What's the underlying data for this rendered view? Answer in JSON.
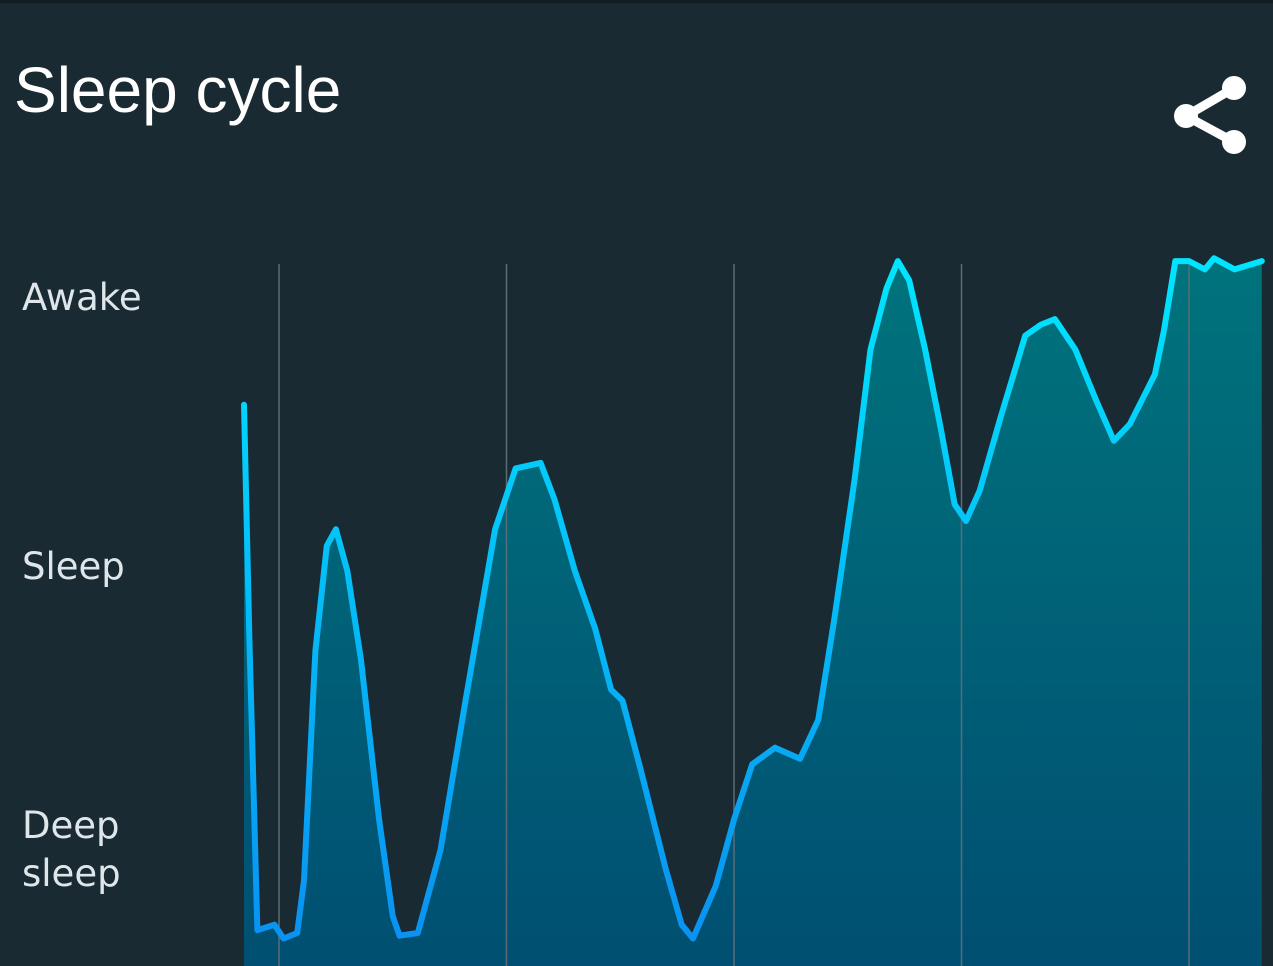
{
  "header": {
    "title": "Sleep cycle",
    "share_icon": "share-icon"
  },
  "chart_data": {
    "type": "area",
    "title": "Sleep cycle",
    "y_tick_labels": [
      {
        "label": "Awake",
        "value": 2
      },
      {
        "label": "Sleep",
        "value": 1
      },
      {
        "label": "Deep sleep",
        "value": 0
      }
    ],
    "ylim": [
      -0.4,
      2.2
    ],
    "xlim": [
      -0.16,
      4.32
    ],
    "vertical_grid_x": [
      0,
      1,
      2,
      3,
      4
    ],
    "grid": "vertical only",
    "colors": {
      "background": "#1a2a33",
      "line_top": "#00e5ff",
      "line_bottom": "#0a8ff0",
      "fill_top": "#00737c",
      "fill_bottom": "#004f72",
      "grid": "#5a6c76"
    },
    "series": [
      {
        "x": [
          -0.154,
          -0.13,
          -0.095,
          -0.02,
          0.02,
          0.08,
          0.11,
          0.16,
          0.21,
          0.25,
          0.3,
          0.36,
          0.44,
          0.5,
          0.53,
          0.61,
          0.71,
          0.82,
          0.95,
          1.04,
          1.15,
          1.21,
          1.3,
          1.39,
          1.46,
          1.51,
          1.59,
          1.7,
          1.77,
          1.82,
          1.92,
          2.0,
          2.08,
          2.18,
          2.29,
          2.37,
          2.44,
          2.53,
          2.6,
          2.67,
          2.72,
          2.77,
          2.84,
          2.91,
          2.97,
          3.02,
          3.08,
          3.17,
          3.28,
          3.35,
          3.41,
          3.5,
          3.59,
          3.67,
          3.74,
          3.85,
          3.89,
          3.94,
          4.0,
          4.07,
          4.11,
          4.2,
          4.32
        ],
        "y": [
          1.61,
          0.76,
          -0.29,
          -0.27,
          -0.32,
          -0.3,
          -0.11,
          0.72,
          1.1,
          1.16,
          1.01,
          0.69,
          0.11,
          -0.24,
          -0.31,
          -0.3,
          0.0,
          0.54,
          1.16,
          1.38,
          1.4,
          1.27,
          1.01,
          0.8,
          0.58,
          0.54,
          0.29,
          -0.07,
          -0.27,
          -0.32,
          -0.13,
          0.11,
          0.31,
          0.37,
          0.33,
          0.47,
          0.83,
          1.34,
          1.81,
          2.03,
          2.13,
          2.06,
          1.81,
          1.52,
          1.25,
          1.19,
          1.3,
          1.56,
          1.86,
          1.9,
          1.92,
          1.81,
          1.63,
          1.48,
          1.54,
          1.72,
          1.88,
          2.13,
          2.13,
          2.1,
          2.14,
          2.1,
          2.13
        ]
      }
    ]
  }
}
